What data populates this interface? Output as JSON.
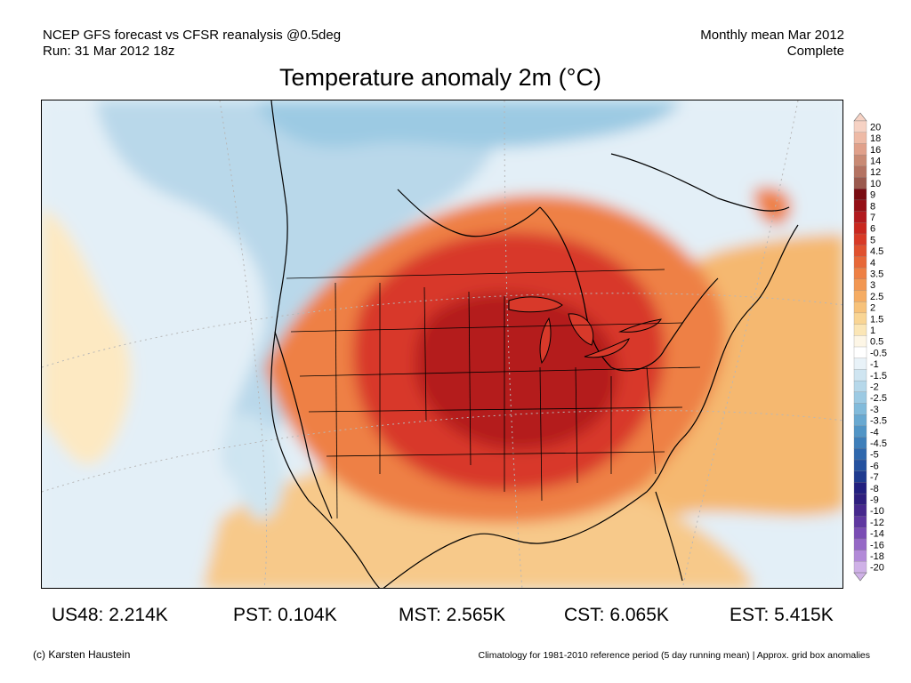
{
  "header": {
    "left_line1": "NCEP GFS forecast vs CFSR reanalysis @0.5deg",
    "left_line2": "Run: 31 Mar 2012 18z",
    "right_line1": "Monthly mean Mar 2012",
    "right_line2": "Complete"
  },
  "title": "Temperature anomaly 2m (°C)",
  "colorbar": {
    "labels": [
      "20",
      "18",
      "16",
      "14",
      "12",
      "10",
      "9",
      "8",
      "7",
      "6",
      "5",
      "4.5",
      "4",
      "3.5",
      "3",
      "2.5",
      "2",
      "1.5",
      "1",
      "0.5",
      "-0.5",
      "-1",
      "-1.5",
      "-2",
      "-2.5",
      "-3",
      "-3.5",
      "-4",
      "-4.5",
      "-5",
      "-6",
      "-7",
      "-8",
      "-9",
      "-10",
      "-12",
      "-14",
      "-16",
      "-18",
      "-20"
    ],
    "colors": [
      "#f6d2c4",
      "#eebaa6",
      "#e0a08a",
      "#c98a74",
      "#b47362",
      "#9b5a4e",
      "#7a0c12",
      "#950f16",
      "#b21a1f",
      "#c9271f",
      "#d83a26",
      "#e0512e",
      "#e76838",
      "#ee8044",
      "#f29752",
      "#f5ac63",
      "#f7c27a",
      "#f9d594",
      "#fbe6b6",
      "#fdf6e6",
      "#ffffff",
      "#e8f2f8",
      "#cfe5f1",
      "#b6d8ea",
      "#9ccae3",
      "#82bbdb",
      "#69a9d1",
      "#5195c6",
      "#3e7fba",
      "#2f68ad",
      "#24519f",
      "#1f3b8f",
      "#221f7f",
      "#2e1e7e",
      "#46288d",
      "#5f37a0",
      "#7a4cb4",
      "#9568c6",
      "#b28ad8",
      "#cfb1e7"
    ]
  },
  "stats": [
    {
      "label": "US48: 2.214K"
    },
    {
      "label": "PST: 0.104K"
    },
    {
      "label": "MST: 2.565K"
    },
    {
      "label": "CST: 6.065K"
    },
    {
      "label": "EST: 5.415K"
    }
  ],
  "footer": {
    "credit": "(c) Karsten Haustein",
    "climatology": "Climatology for 1981-2010 reference period (5 day running mean) | Approx. grid box anomalies"
  }
}
